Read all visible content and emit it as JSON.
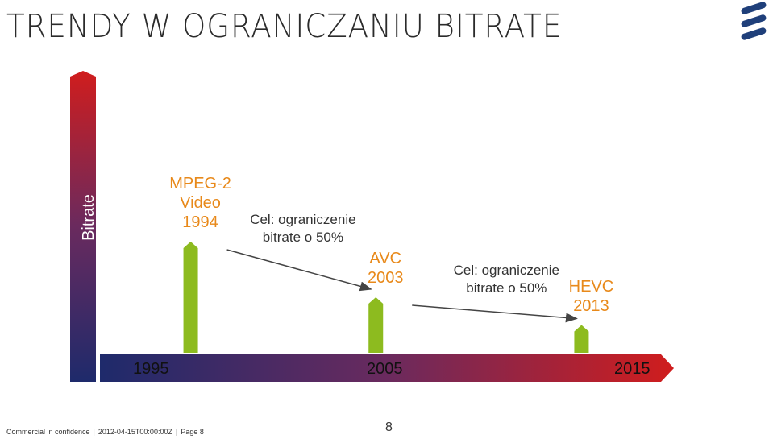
{
  "slide": {
    "title": "TRENDY W OGRANICZANIU BITRATE",
    "footer": {
      "confidentiality": "Commercial in confidence",
      "date": "2012-04-15T00:00:00Z",
      "page_label": "Page 8"
    },
    "page_number": "8"
  },
  "colors": {
    "title": "#2b2b2b",
    "codec_label": "#e8891a",
    "marker": "#8dbb1f",
    "axis_start": "#1e2a6b",
    "axis_end": "#d01d1d",
    "logo": "#1f3f7a"
  },
  "chart_data": {
    "type": "timeline",
    "title": "",
    "ylabel": "Bitrate",
    "xlabel": "",
    "x_ticks": [
      "1995",
      "2005",
      "2015"
    ],
    "xlim": [
      1991,
      2016
    ],
    "events": [
      {
        "codec": "MPEG-2\nVideo\n1994",
        "year": 1994,
        "level": 1.0
      },
      {
        "codec": "AVC\n2003",
        "year": 2003,
        "level": 0.5
      },
      {
        "codec": "HEVC\n2013",
        "year": 2013,
        "level": 0.25
      }
    ],
    "transitions": [
      {
        "from": 1994,
        "to": 2003,
        "label": "Cel: ograniczenie\nbitrate o 50%"
      },
      {
        "from": 2003,
        "to": 2013,
        "label": "Cel: ograniczenie\nbitrate o 50%"
      }
    ]
  }
}
